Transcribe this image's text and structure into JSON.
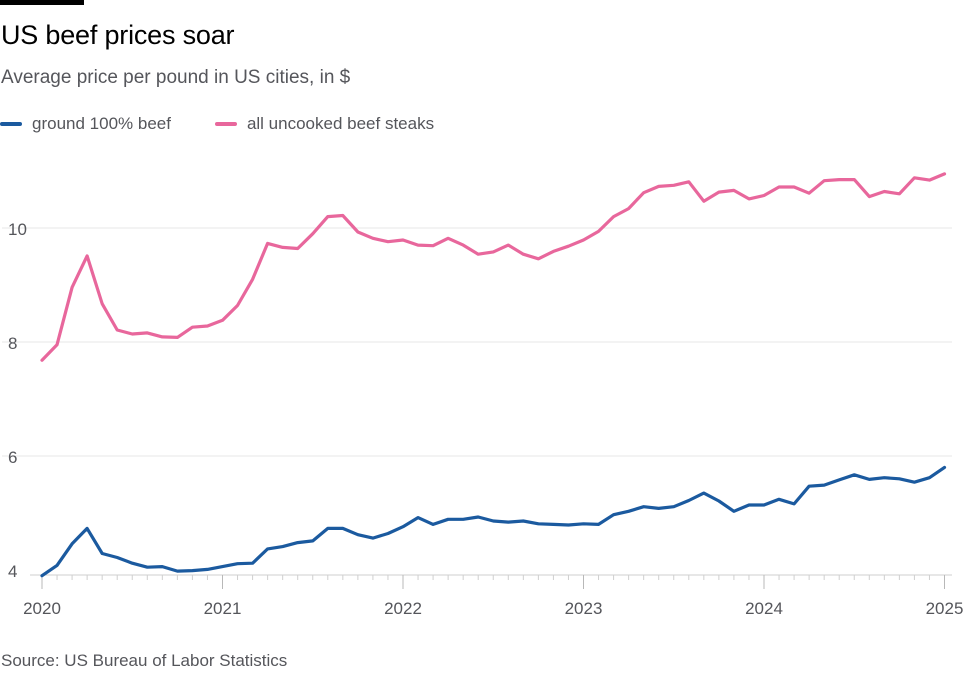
{
  "title": "US beef prices soar",
  "subtitle": "Average price per pound in US cities, in $",
  "source": "Source: US Bureau of Labor Statistics",
  "colors": {
    "ground": "#1b5a9f",
    "steaks": "#e8679c",
    "grid": "#e7e7e7",
    "axis": "#cfcfcf"
  },
  "chart_data": {
    "type": "line",
    "title": "US beef prices soar",
    "subtitle": "Average price per pound in US cities, in $",
    "xlabel": "",
    "ylabel": "",
    "x_start": "2020-01",
    "x_tick_labels": [
      "2020",
      "2021",
      "2022",
      "2023",
      "2024",
      "2025"
    ],
    "y_ticks": [
      4,
      6,
      8,
      10
    ],
    "ylim": [
      3.85,
      11.2
    ],
    "grid": true,
    "legend": "top-left",
    "series": [
      {
        "name": "ground 100% beef",
        "color": "#1b5a9f",
        "values": [
          3.9,
          4.08,
          4.46,
          4.73,
          4.29,
          4.22,
          4.12,
          4.05,
          4.06,
          3.98,
          3.99,
          4.01,
          4.06,
          4.11,
          4.12,
          4.37,
          4.41,
          4.48,
          4.51,
          4.73,
          4.73,
          4.62,
          4.56,
          4.64,
          4.76,
          4.92,
          4.8,
          4.89,
          4.89,
          4.93,
          4.86,
          4.84,
          4.86,
          4.81,
          4.8,
          4.79,
          4.81,
          4.8,
          4.97,
          5.03,
          5.11,
          5.08,
          5.11,
          5.22,
          5.35,
          5.21,
          5.03,
          5.14,
          5.14,
          5.24,
          5.16,
          5.47,
          5.49,
          5.58,
          5.67,
          5.59,
          5.62,
          5.6,
          5.54,
          5.62,
          5.8
        ]
      },
      {
        "name": "all uncooked beef steaks",
        "color": "#e8679c",
        "values": [
          7.68,
          7.95,
          8.96,
          9.51,
          8.67,
          8.21,
          8.14,
          8.16,
          8.09,
          8.08,
          8.26,
          8.28,
          8.38,
          8.64,
          9.1,
          9.73,
          9.66,
          9.64,
          9.9,
          10.2,
          10.22,
          9.93,
          9.82,
          9.76,
          9.79,
          9.7,
          9.69,
          9.82,
          9.7,
          9.54,
          9.58,
          9.7,
          9.54,
          9.46,
          9.59,
          9.68,
          9.79,
          9.94,
          10.2,
          10.34,
          10.62,
          10.73,
          10.75,
          10.81,
          10.47,
          10.63,
          10.66,
          10.51,
          10.57,
          10.72,
          10.72,
          10.61,
          10.83,
          10.85,
          10.85,
          10.55,
          10.64,
          10.6,
          10.88,
          10.84,
          10.95
        ]
      }
    ]
  }
}
